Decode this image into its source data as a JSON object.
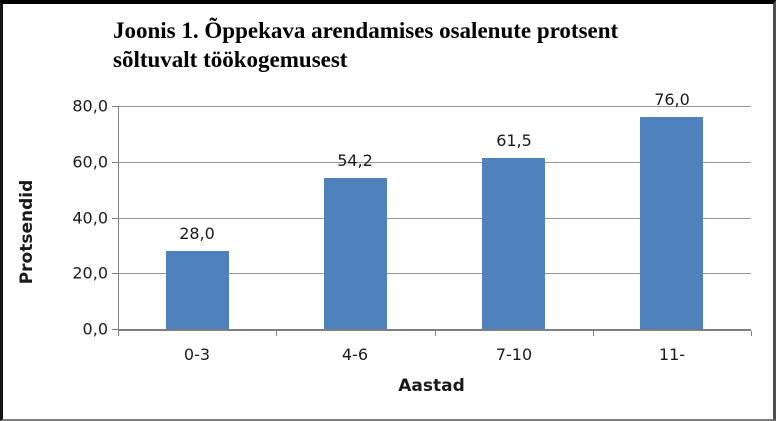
{
  "chart_data": {
    "type": "bar",
    "title": "Joonis 1. Õppekava arendamises osalenute protsent sõltuvalt töökogemusest",
    "title_lines": [
      "Joonis 1. Õppekava arendamises osalenute protsent",
      "sõltuvalt töökogemusest"
    ],
    "xlabel": "Aastad",
    "ylabel": "Protsendid",
    "categories": [
      "0-3",
      "4-6",
      "7-10",
      "11-"
    ],
    "values": [
      28.0,
      54.2,
      61.5,
      76.0
    ],
    "value_labels": [
      "28,0",
      "54,2",
      "61,5",
      "76,0"
    ],
    "y_ticks": [
      {
        "value": 0,
        "label": "0,0"
      },
      {
        "value": 20,
        "label": "20,0"
      },
      {
        "value": 40,
        "label": "40,0"
      },
      {
        "value": 60,
        "label": "60,0"
      },
      {
        "value": 80,
        "label": "80,0"
      }
    ],
    "ylim": [
      0,
      80
    ],
    "grid": true,
    "legend": false,
    "decimal_separator": ",",
    "colors": {
      "bar": "#4F81BD",
      "gridline": "#969696",
      "axis": "#7f7f7f",
      "text": "#1a1a1a",
      "background": "#ffffff"
    }
  }
}
